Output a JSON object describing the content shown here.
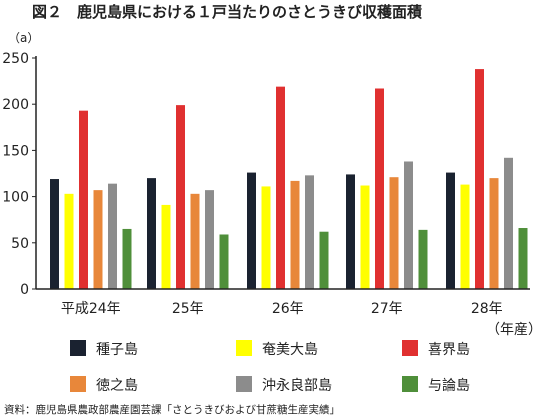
{
  "chart_data": {
    "type": "bar",
    "title": "図２　鹿児島県における１戸当たりのさとうきび収穫面積",
    "yunit": "（a）",
    "xunit": "（年産）",
    "categories": [
      "平成24年",
      "25年",
      "26年",
      "27年",
      "28年"
    ],
    "ylim": [
      0,
      250
    ],
    "yticks": [
      0,
      50,
      100,
      150,
      200,
      250
    ],
    "grid": false,
    "legend_position": "bottom",
    "series": [
      {
        "name": "種子島",
        "color": "#1a2230",
        "values": [
          119,
          120,
          126,
          124,
          126
        ]
      },
      {
        "name": "奄美大島",
        "color": "#ffff00",
        "values": [
          103,
          91,
          111,
          112,
          113
        ]
      },
      {
        "name": "喜界島",
        "color": "#e03030",
        "values": [
          193,
          199,
          219,
          217,
          238
        ]
      },
      {
        "name": "徳之島",
        "color": "#e8873a",
        "values": [
          107,
          103,
          117,
          121,
          120
        ]
      },
      {
        "name": "沖永良部島",
        "color": "#8c8c8c",
        "values": [
          114,
          107,
          123,
          138,
          142
        ]
      },
      {
        "name": "与論島",
        "color": "#4f8f3a",
        "values": [
          65,
          59,
          62,
          64,
          66
        ]
      }
    ],
    "source": "資料：鹿児島県農政部農産園芸課「さとうきびおよび甘蔗糖生産実績」"
  }
}
